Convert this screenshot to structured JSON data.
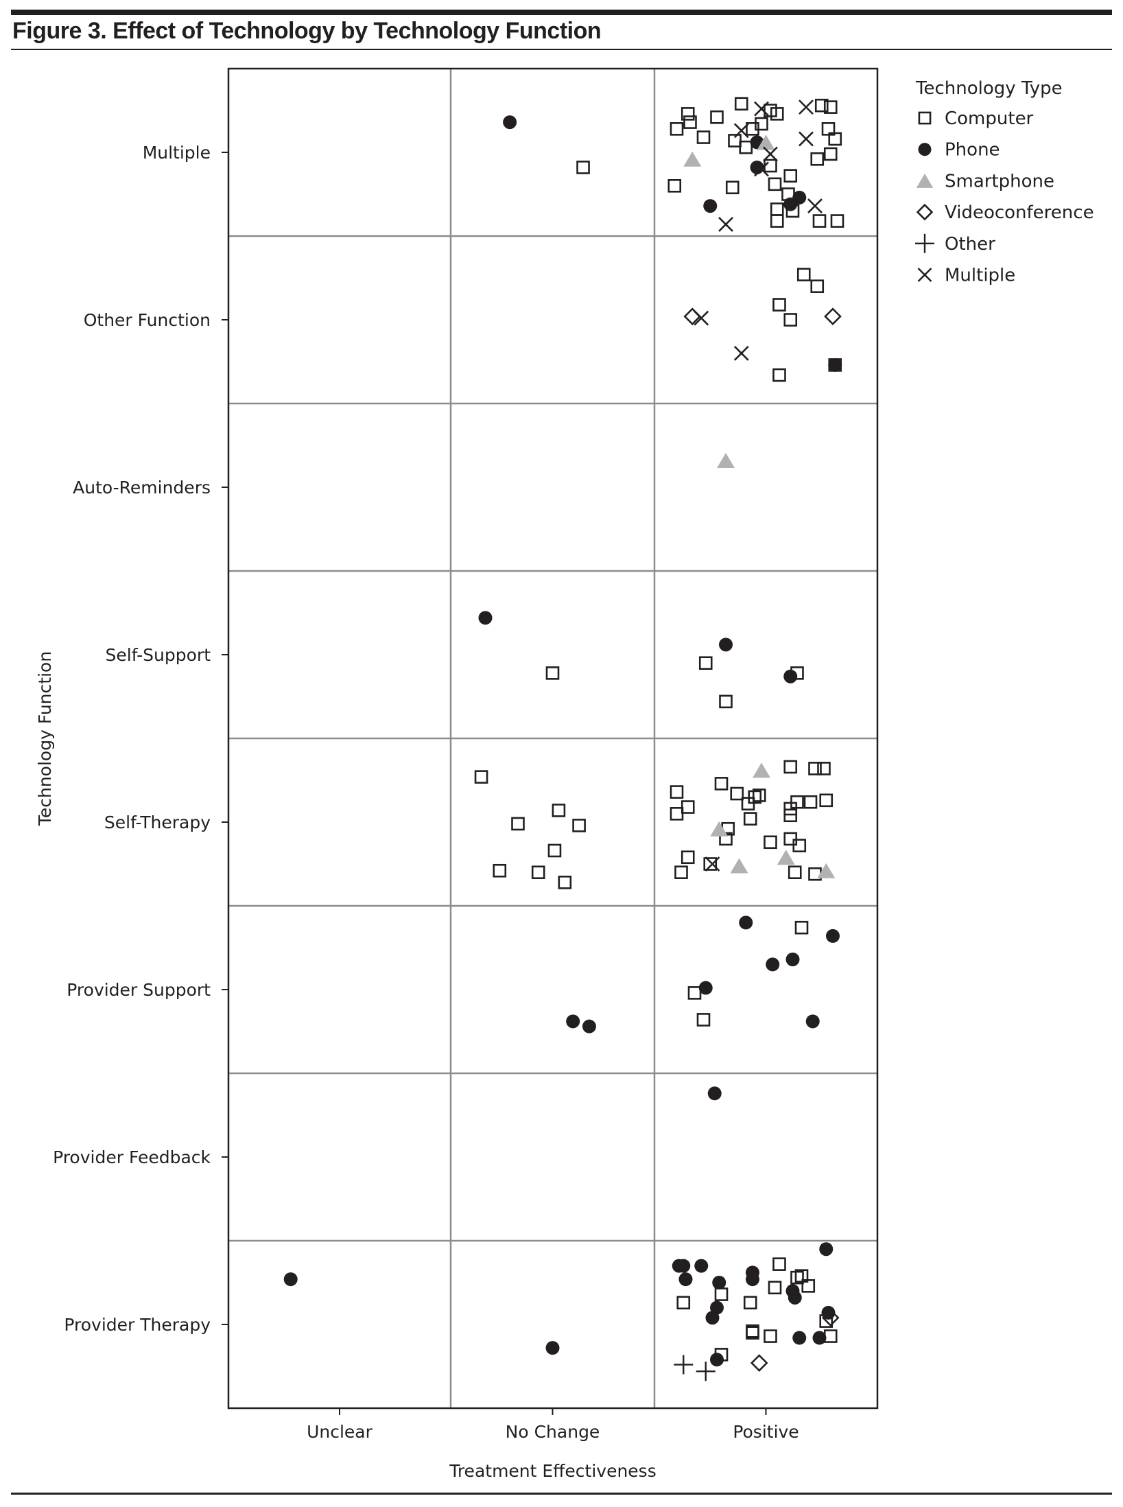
{
  "figure": {
    "title": "Figure 3. Effect of Technology by Technology Function"
  },
  "chart_data": {
    "type": "scatter",
    "subtype": "jittered categorical strip plot",
    "title": "Figure 3. Effect of Technology by Technology Function",
    "xlabel": "Treatment Effectiveness",
    "ylabel": "Technology Function",
    "x_categories": [
      "Unclear",
      "No Change",
      "Positive"
    ],
    "y_categories": [
      "Multiple",
      "Other Function",
      "Auto-Reminders",
      "Self-Support",
      "Self-Therapy",
      "Provider Support",
      "Provider Feedback",
      "Provider Therapy"
    ],
    "x_encoding": "category index (0=Unclear,1=No Change,2=Positive) plus jitter",
    "y_encoding": "category index (0=Multiple ... 7=Provider Therapy, top to bottom) plus jitter",
    "grid": true,
    "legend": {
      "title": "Technology Type",
      "position": "right",
      "entries": [
        {
          "key": "computer",
          "label": "Computer",
          "marker": "open-square",
          "color": "#231f20"
        },
        {
          "key": "phone",
          "label": "Phone",
          "marker": "filled-circle",
          "color": "#231f20"
        },
        {
          "key": "smartphone",
          "label": "Smartphone",
          "marker": "filled-triangle",
          "color": "#b1b1b1"
        },
        {
          "key": "videoconference",
          "label": "Videoconference",
          "marker": "open-diamond",
          "color": "#231f20"
        },
        {
          "key": "other",
          "label": "Other",
          "marker": "plus",
          "color": "#231f20"
        },
        {
          "key": "multiple",
          "label": "Multiple",
          "marker": "x",
          "color": "#231f20"
        }
      ]
    },
    "points": [
      {
        "t": "phone",
        "x": 0.79,
        "y": -0.18
      },
      {
        "t": "computer",
        "x": 1.15,
        "y": 0.09
      },
      {
        "t": "computer",
        "x": 1.59,
        "y": 0.2
      },
      {
        "t": "computer",
        "x": 1.65,
        "y": -0.23
      },
      {
        "t": "computer",
        "x": 1.66,
        "y": -0.18
      },
      {
        "t": "computer",
        "x": 1.6,
        "y": -0.14
      },
      {
        "t": "computer",
        "x": 1.72,
        "y": -0.09
      },
      {
        "t": "computer",
        "x": 1.78,
        "y": -0.21
      },
      {
        "t": "computer",
        "x": 1.89,
        "y": -0.29
      },
      {
        "t": "computer",
        "x": 1.94,
        "y": -0.14
      },
      {
        "t": "computer",
        "x": 2.02,
        "y": -0.25
      },
      {
        "t": "computer",
        "x": 2.05,
        "y": -0.23
      },
      {
        "t": "computer",
        "x": 1.86,
        "y": -0.07
      },
      {
        "t": "computer",
        "x": 1.91,
        "y": -0.03
      },
      {
        "t": "computer",
        "x": 1.98,
        "y": -0.17
      },
      {
        "t": "computer",
        "x": 2.02,
        "y": 0.08
      },
      {
        "t": "computer",
        "x": 2.04,
        "y": 0.19
      },
      {
        "t": "computer",
        "x": 2.11,
        "y": 0.14
      },
      {
        "t": "computer",
        "x": 2.1,
        "y": 0.25
      },
      {
        "t": "computer",
        "x": 2.05,
        "y": 0.34
      },
      {
        "t": "computer",
        "x": 2.12,
        "y": 0.35
      },
      {
        "t": "computer",
        "x": 2.05,
        "y": 0.41
      },
      {
        "t": "computer",
        "x": 2.24,
        "y": 0.41
      },
      {
        "t": "computer",
        "x": 2.32,
        "y": 0.41
      },
      {
        "t": "computer",
        "x": 2.25,
        "y": -0.28
      },
      {
        "t": "computer",
        "x": 2.29,
        "y": -0.27
      },
      {
        "t": "computer",
        "x": 2.28,
        "y": -0.14
      },
      {
        "t": "computer",
        "x": 2.31,
        "y": -0.08
      },
      {
        "t": "computer",
        "x": 2.29,
        "y": 0.01
      },
      {
        "t": "computer",
        "x": 2.23,
        "y": 0.04
      },
      {
        "t": "computer",
        "x": 1.85,
        "y": 0.21
      },
      {
        "t": "phone",
        "x": 1.96,
        "y": -0.06
      },
      {
        "t": "phone",
        "x": 1.96,
        "y": 0.09
      },
      {
        "t": "phone",
        "x": 1.75,
        "y": 0.32
      },
      {
        "t": "phone",
        "x": 2.15,
        "y": 0.27
      },
      {
        "t": "phone",
        "x": 2.11,
        "y": 0.31
      },
      {
        "t": "smartphone",
        "x": 1.67,
        "y": 0.04
      },
      {
        "t": "smartphone",
        "x": 2.0,
        "y": -0.06
      },
      {
        "t": "multiple",
        "x": 1.89,
        "y": -0.13
      },
      {
        "t": "multiple",
        "x": 1.98,
        "y": -0.26
      },
      {
        "t": "multiple",
        "x": 2.18,
        "y": -0.27
      },
      {
        "t": "multiple",
        "x": 2.18,
        "y": -0.08
      },
      {
        "t": "multiple",
        "x": 2.02,
        "y": 0.01
      },
      {
        "t": "multiple",
        "x": 1.98,
        "y": 0.1
      },
      {
        "t": "multiple",
        "x": 2.22,
        "y": 0.32
      },
      {
        "t": "multiple",
        "x": 1.82,
        "y": 0.43
      },
      {
        "t": "computer",
        "x": 2.17,
        "y": 0.73
      },
      {
        "t": "computer",
        "x": 2.23,
        "y": 0.8
      },
      {
        "t": "computer",
        "x": 2.06,
        "y": 0.91
      },
      {
        "t": "computer",
        "x": 2.11,
        "y": 1.0
      },
      {
        "t": "computer",
        "x": 2.06,
        "y": 1.33
      },
      {
        "t": "computer",
        "x": 2.31,
        "y": 1.27
      },
      {
        "t": "videoconference",
        "x": 1.67,
        "y": 0.98
      },
      {
        "t": "videoconference",
        "x": 2.3,
        "y": 0.98
      },
      {
        "t": "multiple",
        "x": 1.71,
        "y": 0.99
      },
      {
        "t": "multiple",
        "x": 1.89,
        "y": 1.2
      },
      {
        "t": "phone",
        "x": 2.31,
        "y": 1.27
      },
      {
        "t": "smartphone",
        "x": 1.82,
        "y": 1.84
      },
      {
        "t": "phone",
        "x": 0.67,
        "y": 2.78
      },
      {
        "t": "computer",
        "x": 1.0,
        "y": 3.11
      },
      {
        "t": "phone",
        "x": 1.82,
        "y": 2.94
      },
      {
        "t": "computer",
        "x": 1.73,
        "y": 3.05
      },
      {
        "t": "computer",
        "x": 2.14,
        "y": 3.11
      },
      {
        "t": "phone",
        "x": 2.11,
        "y": 3.13
      },
      {
        "t": "computer",
        "x": 1.82,
        "y": 3.28
      },
      {
        "t": "computer",
        "x": 0.65,
        "y": 3.73
      },
      {
        "t": "computer",
        "x": 0.83,
        "y": 4.01
      },
      {
        "t": "computer",
        "x": 1.03,
        "y": 3.93
      },
      {
        "t": "computer",
        "x": 1.13,
        "y": 4.02
      },
      {
        "t": "computer",
        "x": 1.01,
        "y": 4.17
      },
      {
        "t": "computer",
        "x": 0.74,
        "y": 4.29
      },
      {
        "t": "computer",
        "x": 0.93,
        "y": 4.3
      },
      {
        "t": "computer",
        "x": 1.06,
        "y": 4.36
      },
      {
        "t": "computer",
        "x": 1.6,
        "y": 3.82
      },
      {
        "t": "computer",
        "x": 1.65,
        "y": 3.91
      },
      {
        "t": "computer",
        "x": 1.6,
        "y": 3.95
      },
      {
        "t": "computer",
        "x": 1.8,
        "y": 3.77
      },
      {
        "t": "computer",
        "x": 1.87,
        "y": 3.83
      },
      {
        "t": "computer",
        "x": 1.92,
        "y": 3.89
      },
      {
        "t": "computer",
        "x": 1.95,
        "y": 3.85
      },
      {
        "t": "computer",
        "x": 1.97,
        "y": 3.84
      },
      {
        "t": "computer",
        "x": 1.93,
        "y": 3.98
      },
      {
        "t": "computer",
        "x": 1.83,
        "y": 4.04
      },
      {
        "t": "computer",
        "x": 1.82,
        "y": 4.1
      },
      {
        "t": "computer",
        "x": 2.11,
        "y": 3.67
      },
      {
        "t": "computer",
        "x": 2.22,
        "y": 3.68
      },
      {
        "t": "computer",
        "x": 2.26,
        "y": 3.68
      },
      {
        "t": "computer",
        "x": 2.11,
        "y": 3.92
      },
      {
        "t": "computer",
        "x": 2.14,
        "y": 3.88
      },
      {
        "t": "computer",
        "x": 2.11,
        "y": 3.96
      },
      {
        "t": "computer",
        "x": 2.2,
        "y": 3.88
      },
      {
        "t": "computer",
        "x": 2.27,
        "y": 3.87
      },
      {
        "t": "computer",
        "x": 2.02,
        "y": 4.12
      },
      {
        "t": "computer",
        "x": 2.11,
        "y": 4.1
      },
      {
        "t": "computer",
        "x": 2.15,
        "y": 4.14
      },
      {
        "t": "computer",
        "x": 1.65,
        "y": 4.21
      },
      {
        "t": "computer",
        "x": 1.62,
        "y": 4.3
      },
      {
        "t": "computer",
        "x": 1.75,
        "y": 4.25
      },
      {
        "t": "computer",
        "x": 2.13,
        "y": 4.3
      },
      {
        "t": "computer",
        "x": 2.22,
        "y": 4.31
      },
      {
        "t": "smartphone",
        "x": 1.98,
        "y": 3.69
      },
      {
        "t": "smartphone",
        "x": 1.79,
        "y": 4.04
      },
      {
        "t": "smartphone",
        "x": 1.88,
        "y": 4.26
      },
      {
        "t": "smartphone",
        "x": 2.09,
        "y": 4.21
      },
      {
        "t": "smartphone",
        "x": 2.27,
        "y": 4.29
      },
      {
        "t": "multiple",
        "x": 1.76,
        "y": 4.25
      },
      {
        "t": "phone",
        "x": 1.1,
        "y": 5.19
      },
      {
        "t": "phone",
        "x": 1.18,
        "y": 5.22
      },
      {
        "t": "phone",
        "x": 1.91,
        "y": 4.6
      },
      {
        "t": "phone",
        "x": 2.3,
        "y": 4.68
      },
      {
        "t": "phone",
        "x": 2.03,
        "y": 4.85
      },
      {
        "t": "phone",
        "x": 2.12,
        "y": 4.82
      },
      {
        "t": "phone",
        "x": 1.73,
        "y": 4.99
      },
      {
        "t": "phone",
        "x": 2.21,
        "y": 5.19
      },
      {
        "t": "computer",
        "x": 2.16,
        "y": 4.63
      },
      {
        "t": "computer",
        "x": 1.68,
        "y": 5.02
      },
      {
        "t": "computer",
        "x": 1.72,
        "y": 5.18
      },
      {
        "t": "phone",
        "x": 1.77,
        "y": 5.62
      },
      {
        "t": "phone",
        "x": -0.22,
        "y": 6.73
      },
      {
        "t": "phone",
        "x": 1.0,
        "y": 7.14
      },
      {
        "t": "phone",
        "x": 1.61,
        "y": 6.65
      },
      {
        "t": "phone",
        "x": 1.63,
        "y": 6.65
      },
      {
        "t": "phone",
        "x": 1.71,
        "y": 6.65
      },
      {
        "t": "phone",
        "x": 1.64,
        "y": 6.73
      },
      {
        "t": "phone",
        "x": 1.79,
        "y": 6.75
      },
      {
        "t": "phone",
        "x": 1.94,
        "y": 6.69
      },
      {
        "t": "phone",
        "x": 1.94,
        "y": 6.73
      },
      {
        "t": "phone",
        "x": 1.78,
        "y": 6.9
      },
      {
        "t": "phone",
        "x": 1.76,
        "y": 6.96
      },
      {
        "t": "phone",
        "x": 2.12,
        "y": 6.8
      },
      {
        "t": "phone",
        "x": 2.13,
        "y": 6.84
      },
      {
        "t": "phone",
        "x": 2.27,
        "y": 6.55
      },
      {
        "t": "phone",
        "x": 2.28,
        "y": 6.93
      },
      {
        "t": "phone",
        "x": 2.15,
        "y": 7.08
      },
      {
        "t": "phone",
        "x": 2.24,
        "y": 7.08
      },
      {
        "t": "phone",
        "x": 1.78,
        "y": 7.21
      },
      {
        "t": "computer",
        "x": 2.06,
        "y": 6.64
      },
      {
        "t": "computer",
        "x": 2.04,
        "y": 6.78
      },
      {
        "t": "computer",
        "x": 1.8,
        "y": 6.82
      },
      {
        "t": "computer",
        "x": 1.63,
        "y": 6.87
      },
      {
        "t": "computer",
        "x": 1.93,
        "y": 6.87
      },
      {
        "t": "computer",
        "x": 2.14,
        "y": 6.72
      },
      {
        "t": "computer",
        "x": 2.16,
        "y": 6.71
      },
      {
        "t": "computer",
        "x": 2.19,
        "y": 6.77
      },
      {
        "t": "computer",
        "x": 1.94,
        "y": 7.05
      },
      {
        "t": "computer",
        "x": 2.02,
        "y": 7.07
      },
      {
        "t": "computer",
        "x": 2.29,
        "y": 7.07
      },
      {
        "t": "computer",
        "x": 2.27,
        "y": 6.98
      },
      {
        "t": "computer",
        "x": 1.8,
        "y": 7.18
      },
      {
        "t": "computer",
        "x": 1.94,
        "y": 7.04
      },
      {
        "t": "videoconference",
        "x": 2.29,
        "y": 6.96
      },
      {
        "t": "videoconference",
        "x": 1.97,
        "y": 7.23
      },
      {
        "t": "other",
        "x": 1.63,
        "y": 7.24
      },
      {
        "t": "other",
        "x": 1.73,
        "y": 7.28
      }
    ]
  }
}
